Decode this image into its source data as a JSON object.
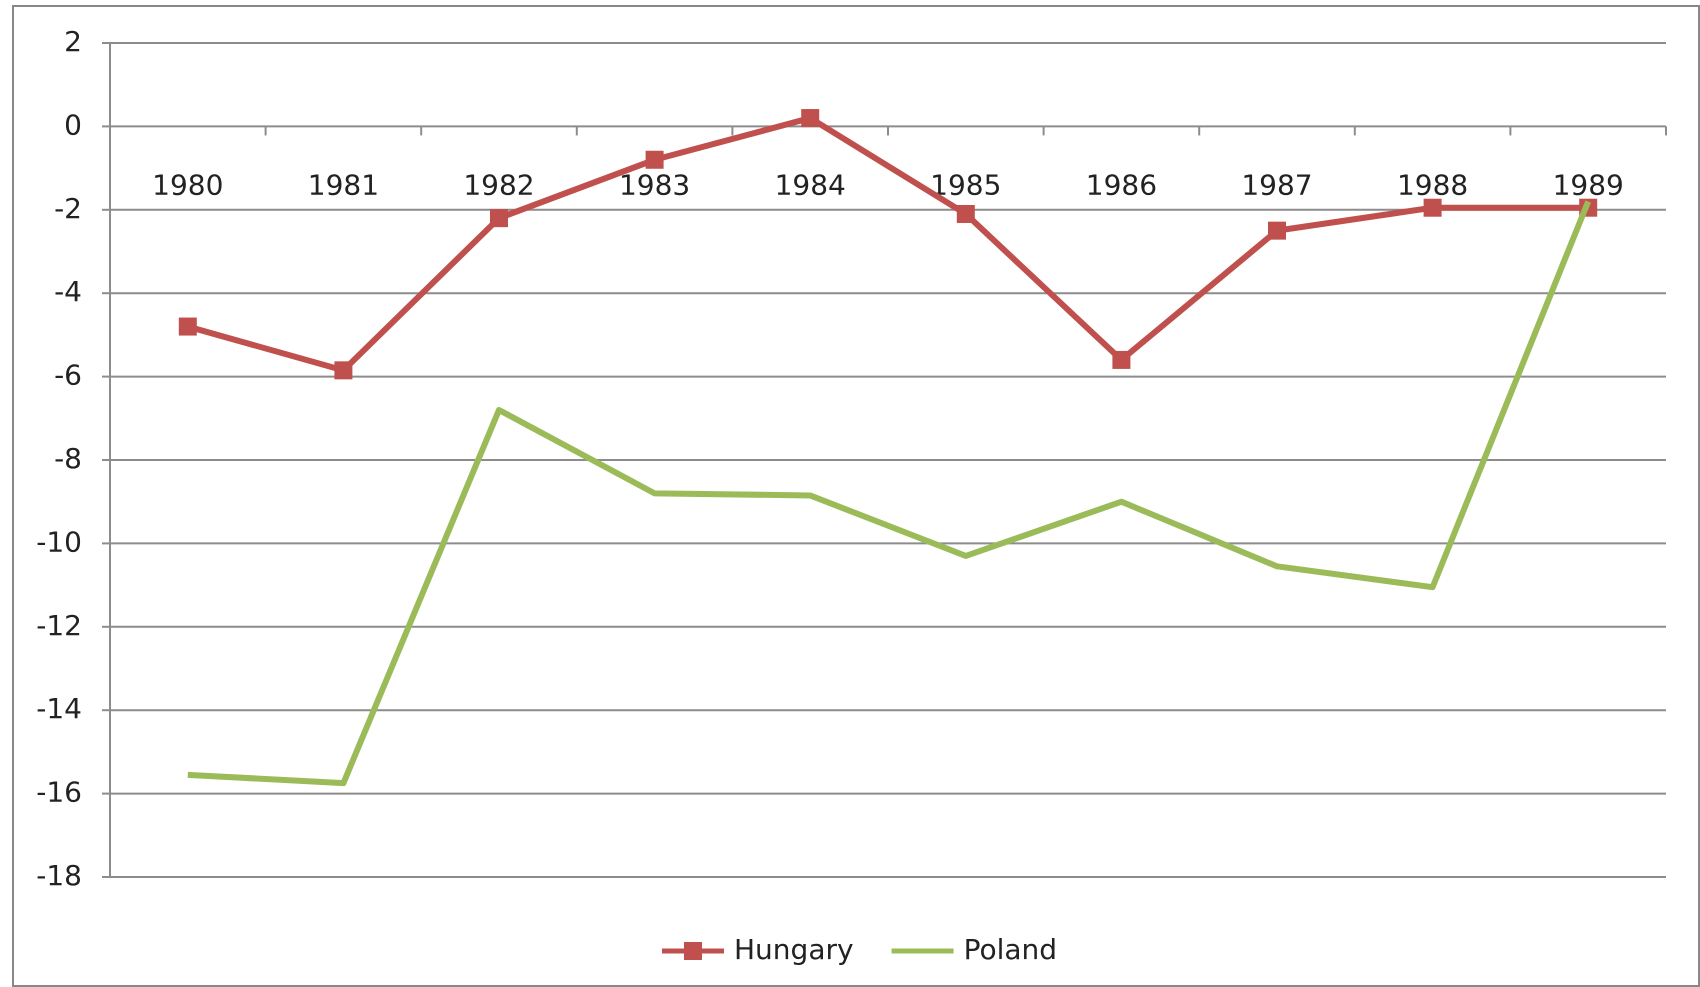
{
  "chart_data": {
    "type": "line",
    "categories": [
      "1980",
      "1981",
      "1982",
      "1983",
      "1984",
      "1985",
      "1986",
      "1987",
      "1988",
      "1989"
    ],
    "series": [
      {
        "name": "Hungary",
        "color": "#c0504d",
        "marker": "square",
        "values": [
          -4.8,
          -5.85,
          -2.2,
          -0.8,
          0.2,
          -2.1,
          -5.6,
          -2.5,
          -1.95,
          -1.95
        ]
      },
      {
        "name": "Poland",
        "color": "#9bbb59",
        "values": [
          -15.55,
          -15.75,
          -6.8,
          -8.8,
          -8.85,
          -10.3,
          -9,
          -10.55,
          -11.05,
          -1.8
        ]
      }
    ],
    "ylim": [
      -18,
      2
    ],
    "yticks": [
      -18,
      -16,
      -14,
      -12,
      -10,
      -8,
      -6,
      -4,
      -2,
      0,
      2
    ],
    "grid": true,
    "legend": "bottom"
  }
}
